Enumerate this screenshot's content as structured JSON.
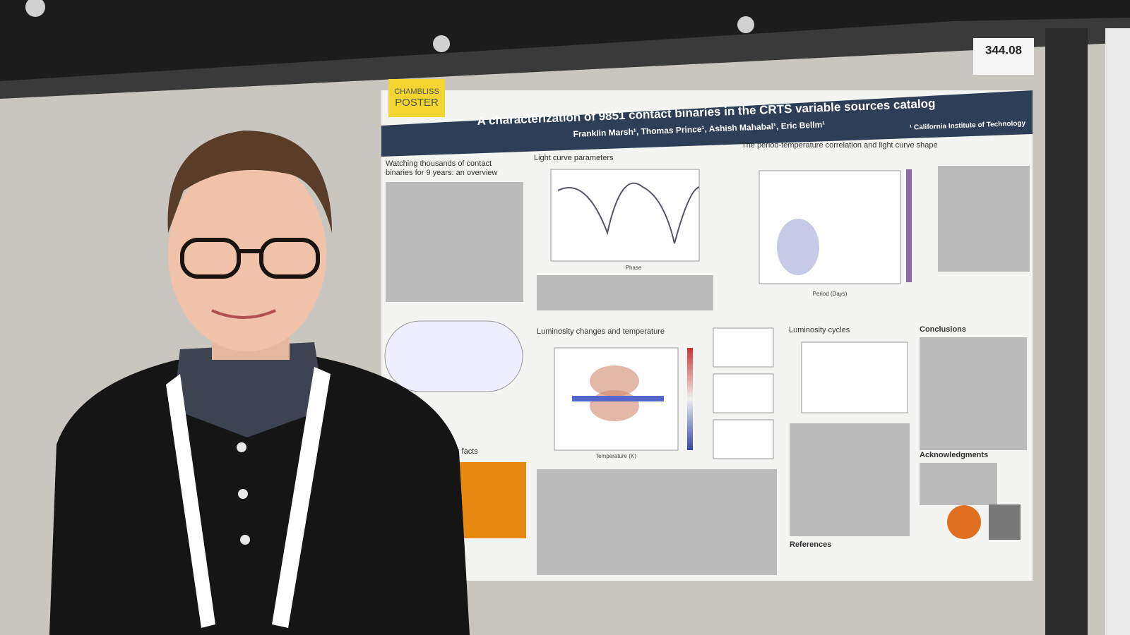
{
  "sign": {
    "number": "344.08"
  },
  "sticker": {
    "line1": "CHAMBLISS",
    "line2": "POSTER"
  },
  "poster": {
    "title": "A characterization of 9851 contact binaries in the CRTS variable sources catalog",
    "authors": "Franklin Marsh¹, Thomas Prince¹, Ashish Mahabal¹, Eric Bellm¹",
    "affiliation": "¹ California Institute of Technology",
    "sections": {
      "overview": [
        "Watching thousands of contact",
        "binaries for 9 years: an overview"
      ],
      "light_curve": "Light curve parameters",
      "period_temperature": "The period-temperature correlation and light curve shape",
      "luminosity_temperature": "Luminosity changes and temperature",
      "luminosity_cycles": "Luminosity cycles",
      "conclusions": "Conclusions",
      "acknowledgments": "Acknowledgments",
      "references": "References",
      "facts": "k facts"
    },
    "axis_labels": {
      "phase": "Phase",
      "period": "Period (Days)",
      "temperature": "Temperature (K)"
    }
  }
}
